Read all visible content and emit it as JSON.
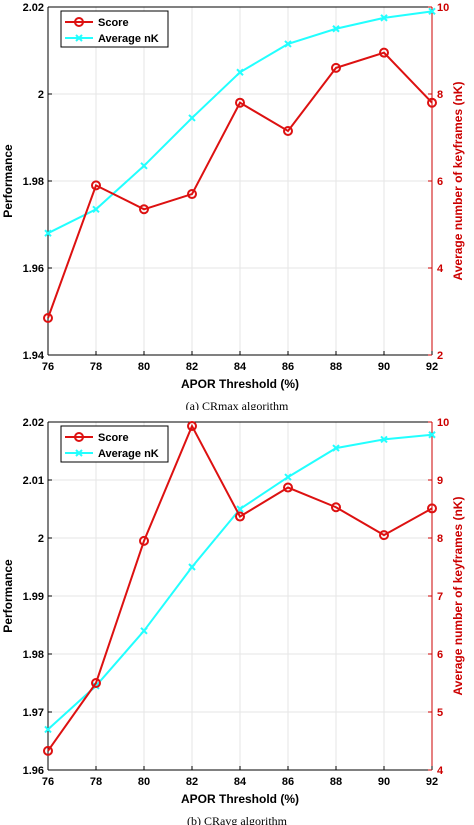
{
  "chart_data": [
    {
      "type": "line",
      "caption": "(a) CRmax algorithm",
      "xlabel": "APOR Threshold (%)",
      "ylabel": "Performance",
      "y2label": "Average number of keyframes (nK)",
      "x": [
        76,
        78,
        80,
        82,
        84,
        86,
        88,
        90,
        92
      ],
      "xlim": [
        76,
        92
      ],
      "ylim": [
        1.94,
        2.02
      ],
      "y2lim": [
        2,
        10
      ],
      "xticks": [
        "76",
        "78",
        "80",
        "82",
        "84",
        "86",
        "88",
        "90",
        "92"
      ],
      "yticks": [
        "1.94",
        "1.96",
        "1.98",
        "2",
        "2.02"
      ],
      "y2ticks": [
        "2",
        "4",
        "6",
        "8",
        "10"
      ],
      "legend_position": "top-left",
      "grid": true,
      "series": [
        {
          "name": "Score",
          "axis": "left",
          "color": "#dd1111",
          "marker": "circle",
          "values": [
            1.9485,
            1.979,
            1.9735,
            1.977,
            1.998,
            1.9915,
            2.006,
            2.0095,
            1.998
          ]
        },
        {
          "name": "Average nK",
          "axis": "right",
          "color": "#22ffff",
          "marker": "x",
          "values": [
            4.8,
            5.35,
            6.35,
            7.45,
            8.5,
            9.15,
            9.5,
            9.75,
            9.9
          ]
        }
      ]
    },
    {
      "type": "line",
      "caption": "(b) CRavg algorithm",
      "xlabel": "APOR Threshold (%)",
      "ylabel": "Performance",
      "y2label": "Average number of keyframes (nK)",
      "x": [
        76,
        78,
        80,
        82,
        84,
        86,
        88,
        90,
        92
      ],
      "xlim": [
        76,
        92
      ],
      "ylim": [
        1.96,
        2.02
      ],
      "y2lim": [
        4,
        10
      ],
      "xticks": [
        "76",
        "78",
        "80",
        "82",
        "84",
        "86",
        "88",
        "90",
        "92"
      ],
      "yticks": [
        "1.96",
        "1.97",
        "1.98",
        "1.99",
        "2",
        "2.01",
        "2.02"
      ],
      "y2ticks": [
        "4",
        "5",
        "6",
        "7",
        "8",
        "9",
        "10"
      ],
      "legend_position": "top-left",
      "grid": true,
      "series": [
        {
          "name": "Score",
          "axis": "left",
          "color": "#dd1111",
          "marker": "circle",
          "values": [
            1.9633,
            1.975,
            1.9995,
            2.0193,
            2.0037,
            2.0087,
            2.0053,
            2.0005,
            2.0051
          ]
        },
        {
          "name": "Average nK",
          "axis": "right",
          "color": "#22ffff",
          "marker": "x",
          "values": [
            4.7,
            5.45,
            6.4,
            7.5,
            8.5,
            9.05,
            9.55,
            9.7,
            9.78
          ]
        }
      ]
    }
  ]
}
